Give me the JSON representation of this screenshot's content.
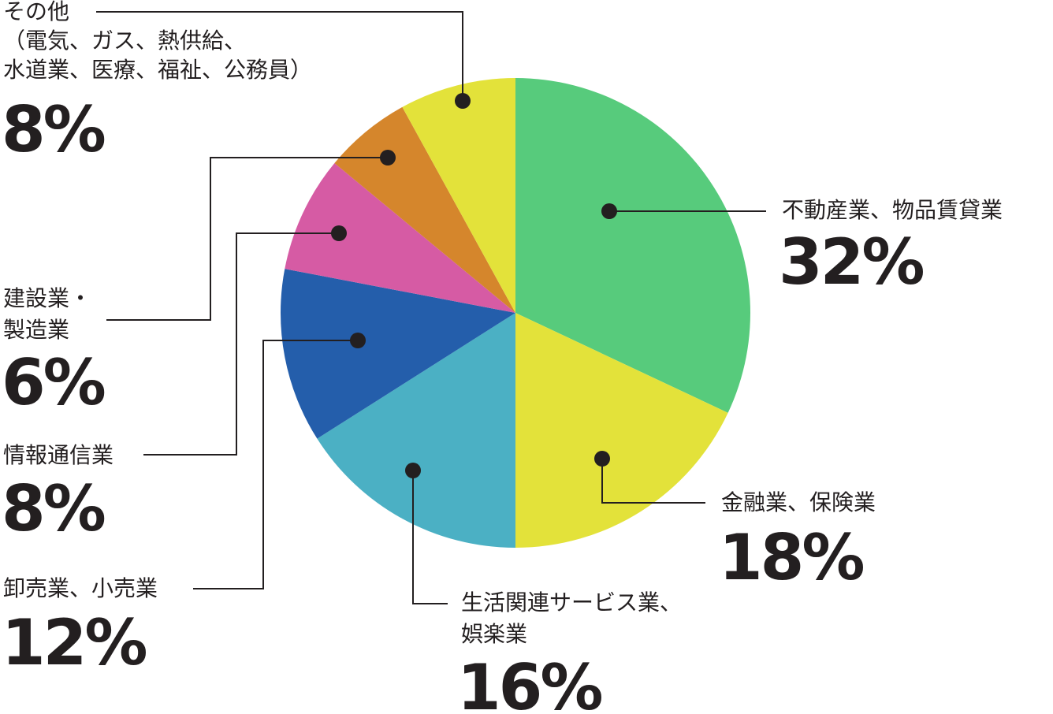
{
  "chart_data": {
    "type": "pie",
    "start_angle": "12 o'clock",
    "direction": "clockwise",
    "slices": [
      {
        "key": "real_estate",
        "label_lines": [
          "不動産業、物品賃貸業"
        ],
        "percent_label": "32%",
        "value": 32,
        "color": "#57cb7c"
      },
      {
        "key": "finance",
        "label_lines": [
          "金融業、保険業"
        ],
        "percent_label": "18%",
        "value": 18,
        "color": "#e3e23a"
      },
      {
        "key": "services",
        "label_lines": [
          "生活関連サービス業、",
          "娯楽業"
        ],
        "percent_label": "16%",
        "value": 16,
        "color": "#4bb0c4"
      },
      {
        "key": "trade",
        "label_lines": [
          "卸売業、小売業"
        ],
        "percent_label": "12%",
        "value": 12,
        "color": "#245eab"
      },
      {
        "key": "info",
        "label_lines": [
          "情報通信業"
        ],
        "percent_label": "8%",
        "value": 8,
        "color": "#d65ba4"
      },
      {
        "key": "construction",
        "label_lines": [
          "建設業・",
          "製造業"
        ],
        "percent_label": "6%",
        "value": 6,
        "color": "#d5862c"
      },
      {
        "key": "other",
        "label_lines": [
          "その他",
          "（電気、ガス、熱供給、",
          "水道業、医療、福祉、公務員）"
        ],
        "percent_label": "8%",
        "value": 8,
        "color": "#e3e23a"
      }
    ]
  }
}
